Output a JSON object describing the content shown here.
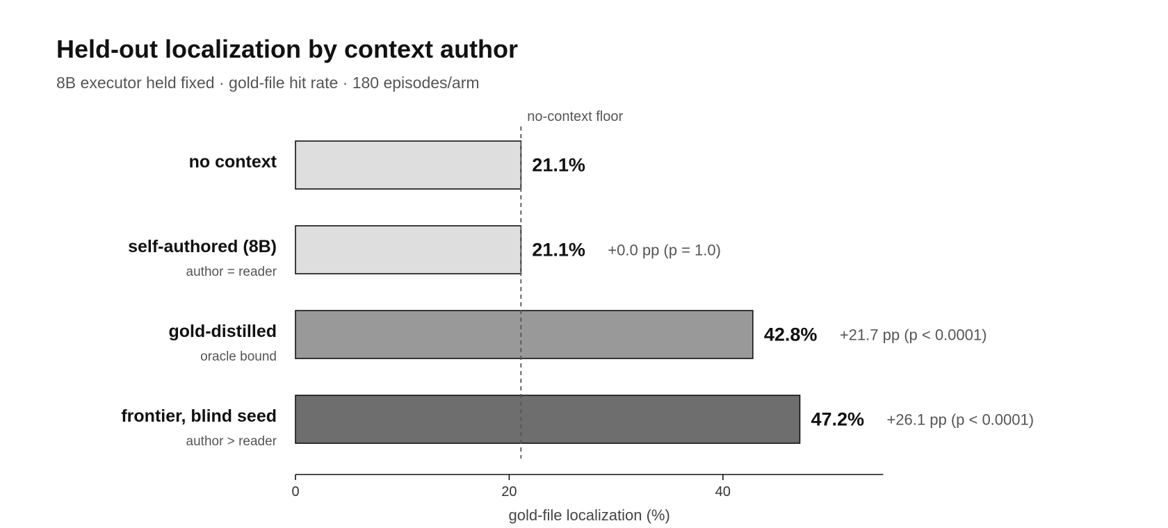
{
  "title": "Held-out localization by context author",
  "subtitle": "8B executor held fixed · gold-file hit rate · 180 episodes/arm",
  "colors": {
    "no_context": "#dedede",
    "self_authored": "#dedede",
    "gold_distilled": "#999999",
    "frontier": "#6e6e6e",
    "bar_stroke": "#111111",
    "reference_line": "#555555"
  },
  "chart_data": {
    "type": "bar",
    "orientation": "horizontal",
    "title": "Held-out localization by context author",
    "subtitle": "8B executor held fixed · gold-file hit rate · 180 episodes/arm",
    "xlabel": "gold-file localization (%)",
    "ylabel": "",
    "xlim": [
      0,
      55
    ],
    "xticks": [
      0,
      20,
      40
    ],
    "grid": false,
    "legend": "none",
    "categories": [
      "no context",
      "self-authored (8B)",
      "gold-distilled",
      "frontier, blind seed"
    ],
    "sublabels": [
      "",
      "author = reader",
      "oracle bound",
      "author > reader"
    ],
    "values": [
      21.1,
      21.1,
      42.8,
      47.2
    ],
    "value_labels": [
      "21.1%",
      "21.1%",
      "42.8%",
      "47.2%"
    ],
    "deltas": [
      "",
      "+0.0 pp (p = 1.0)",
      "+21.7 pp (p < 0.0001)",
      "+26.1 pp (p < 0.0001)"
    ],
    "reference_line": {
      "value": 21.1,
      "label": "no-context floor"
    }
  }
}
